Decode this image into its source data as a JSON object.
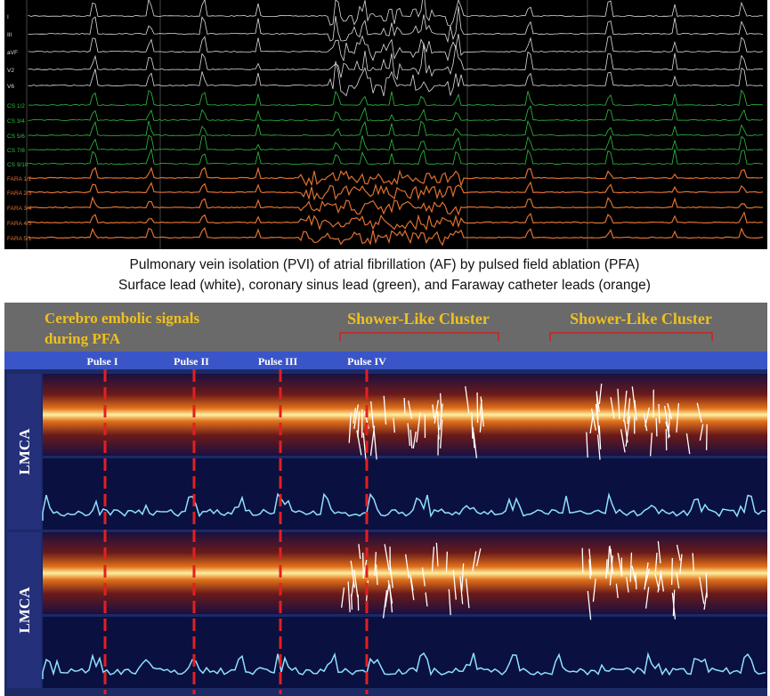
{
  "ecg": {
    "leads": [
      "I",
      "III",
      "aVF",
      "V2",
      "V6",
      "CS 1/2",
      "CS 3/4",
      "CS 5/6",
      "CS 7/8",
      "CS 9/10",
      "FARA 1/2",
      "FARA 2/3",
      "FARA 3/4",
      "FARA 4/5",
      "FARA 5/1"
    ]
  },
  "caption": {
    "lines": [
      "Pulmonary vein isolation (PVI) of atrial fibrillation (AF) by pulsed field ablation (PFA)",
      "Surface lead (white), coronary sinus lead (green), and Faraway catheter leads (orange)"
    ]
  },
  "tcd": {
    "annotation": [
      "Cerebro embolic signals",
      "during PFA"
    ],
    "clusters": [
      "Shower-Like Cluster",
      "Shower-Like Cluster"
    ],
    "pulses": [
      "Pulse I",
      "Pulse II",
      "Pulse III",
      "Pulse IV"
    ],
    "channels": [
      "LMCA",
      "LMCA"
    ]
  }
}
